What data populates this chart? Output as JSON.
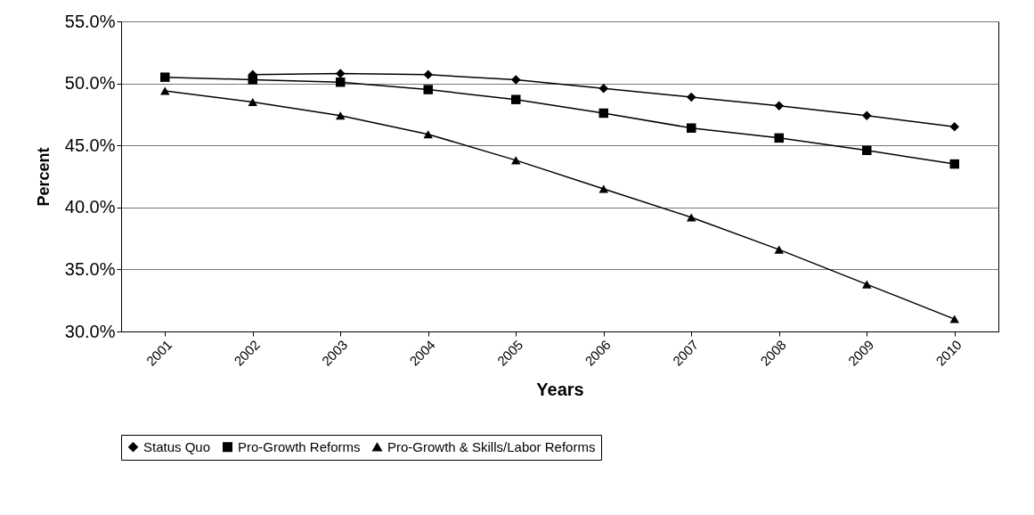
{
  "chart_data": {
    "type": "line",
    "xlabel": "Years",
    "ylabel": "Percent",
    "categories": [
      "2001",
      "2002",
      "2003",
      "2004",
      "2005",
      "2006",
      "2007",
      "2008",
      "2009",
      "2010"
    ],
    "series": [
      {
        "name": "Status Quo",
        "color": "#000000",
        "marker": "diamond",
        "values": [
          null,
          50.7,
          50.8,
          50.7,
          50.3,
          49.6,
          48.9,
          48.2,
          47.4,
          46.5
        ]
      },
      {
        "name": "Pro-Growth Reforms",
        "color": "#000000",
        "marker": "square",
        "values": [
          50.5,
          50.3,
          50.1,
          49.5,
          48.7,
          47.6,
          46.4,
          45.6,
          44.6,
          43.5
        ]
      },
      {
        "name": "Pro-Growth & Skills/Labor Reforms",
        "color": "#000000",
        "marker": "triangle",
        "values": [
          49.4,
          48.5,
          47.4,
          45.9,
          43.8,
          41.5,
          39.2,
          36.6,
          33.8,
          31.0
        ]
      }
    ],
    "ylim": [
      30,
      55
    ],
    "yticks": [
      {
        "value": 30,
        "label": "30.0%"
      },
      {
        "value": 35,
        "label": "35.0%"
      },
      {
        "value": 40,
        "label": "40.0%"
      },
      {
        "value": 45,
        "label": "45.0%"
      },
      {
        "value": 50,
        "label": "50.0%"
      },
      {
        "value": 55,
        "label": "55.0%"
      }
    ],
    "grid": "y",
    "legend": "bottom"
  }
}
